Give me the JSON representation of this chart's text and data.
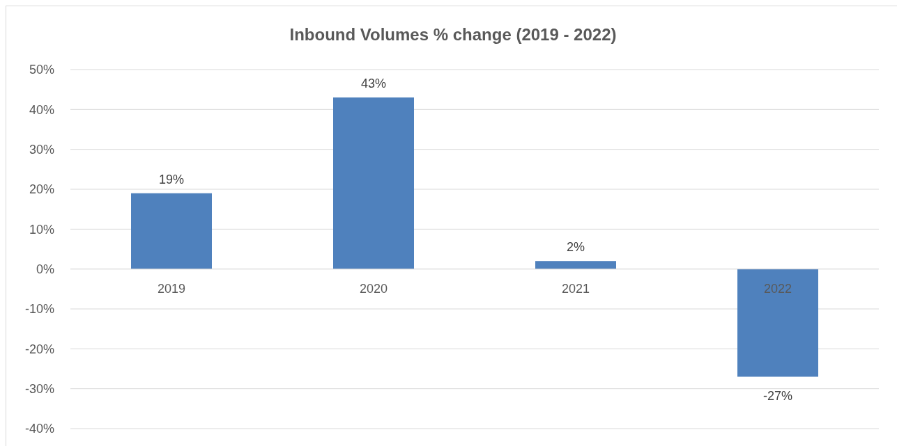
{
  "chart_data": {
    "type": "bar",
    "title": "Inbound Volumes % change (2019 - 2022)",
    "categories": [
      "2019",
      "2020",
      "2021",
      "2022"
    ],
    "values": [
      19,
      43,
      2,
      -27
    ],
    "value_labels": [
      "19%",
      "43%",
      "2%",
      "-27%"
    ],
    "color": "#4f81bd",
    "ylim": [
      -40,
      50
    ],
    "yticks": [
      {
        "value": -40,
        "label": "-40%"
      },
      {
        "value": -30,
        "label": "-30%"
      },
      {
        "value": -20,
        "label": "-20%"
      },
      {
        "value": -10,
        "label": "-10%"
      },
      {
        "value": 0,
        "label": "0%"
      },
      {
        "value": 10,
        "label": "10%"
      },
      {
        "value": 20,
        "label": "20%"
      },
      {
        "value": 30,
        "label": "30%"
      },
      {
        "value": 40,
        "label": "40%"
      },
      {
        "value": 50,
        "label": "50%"
      }
    ],
    "grid": "y"
  }
}
